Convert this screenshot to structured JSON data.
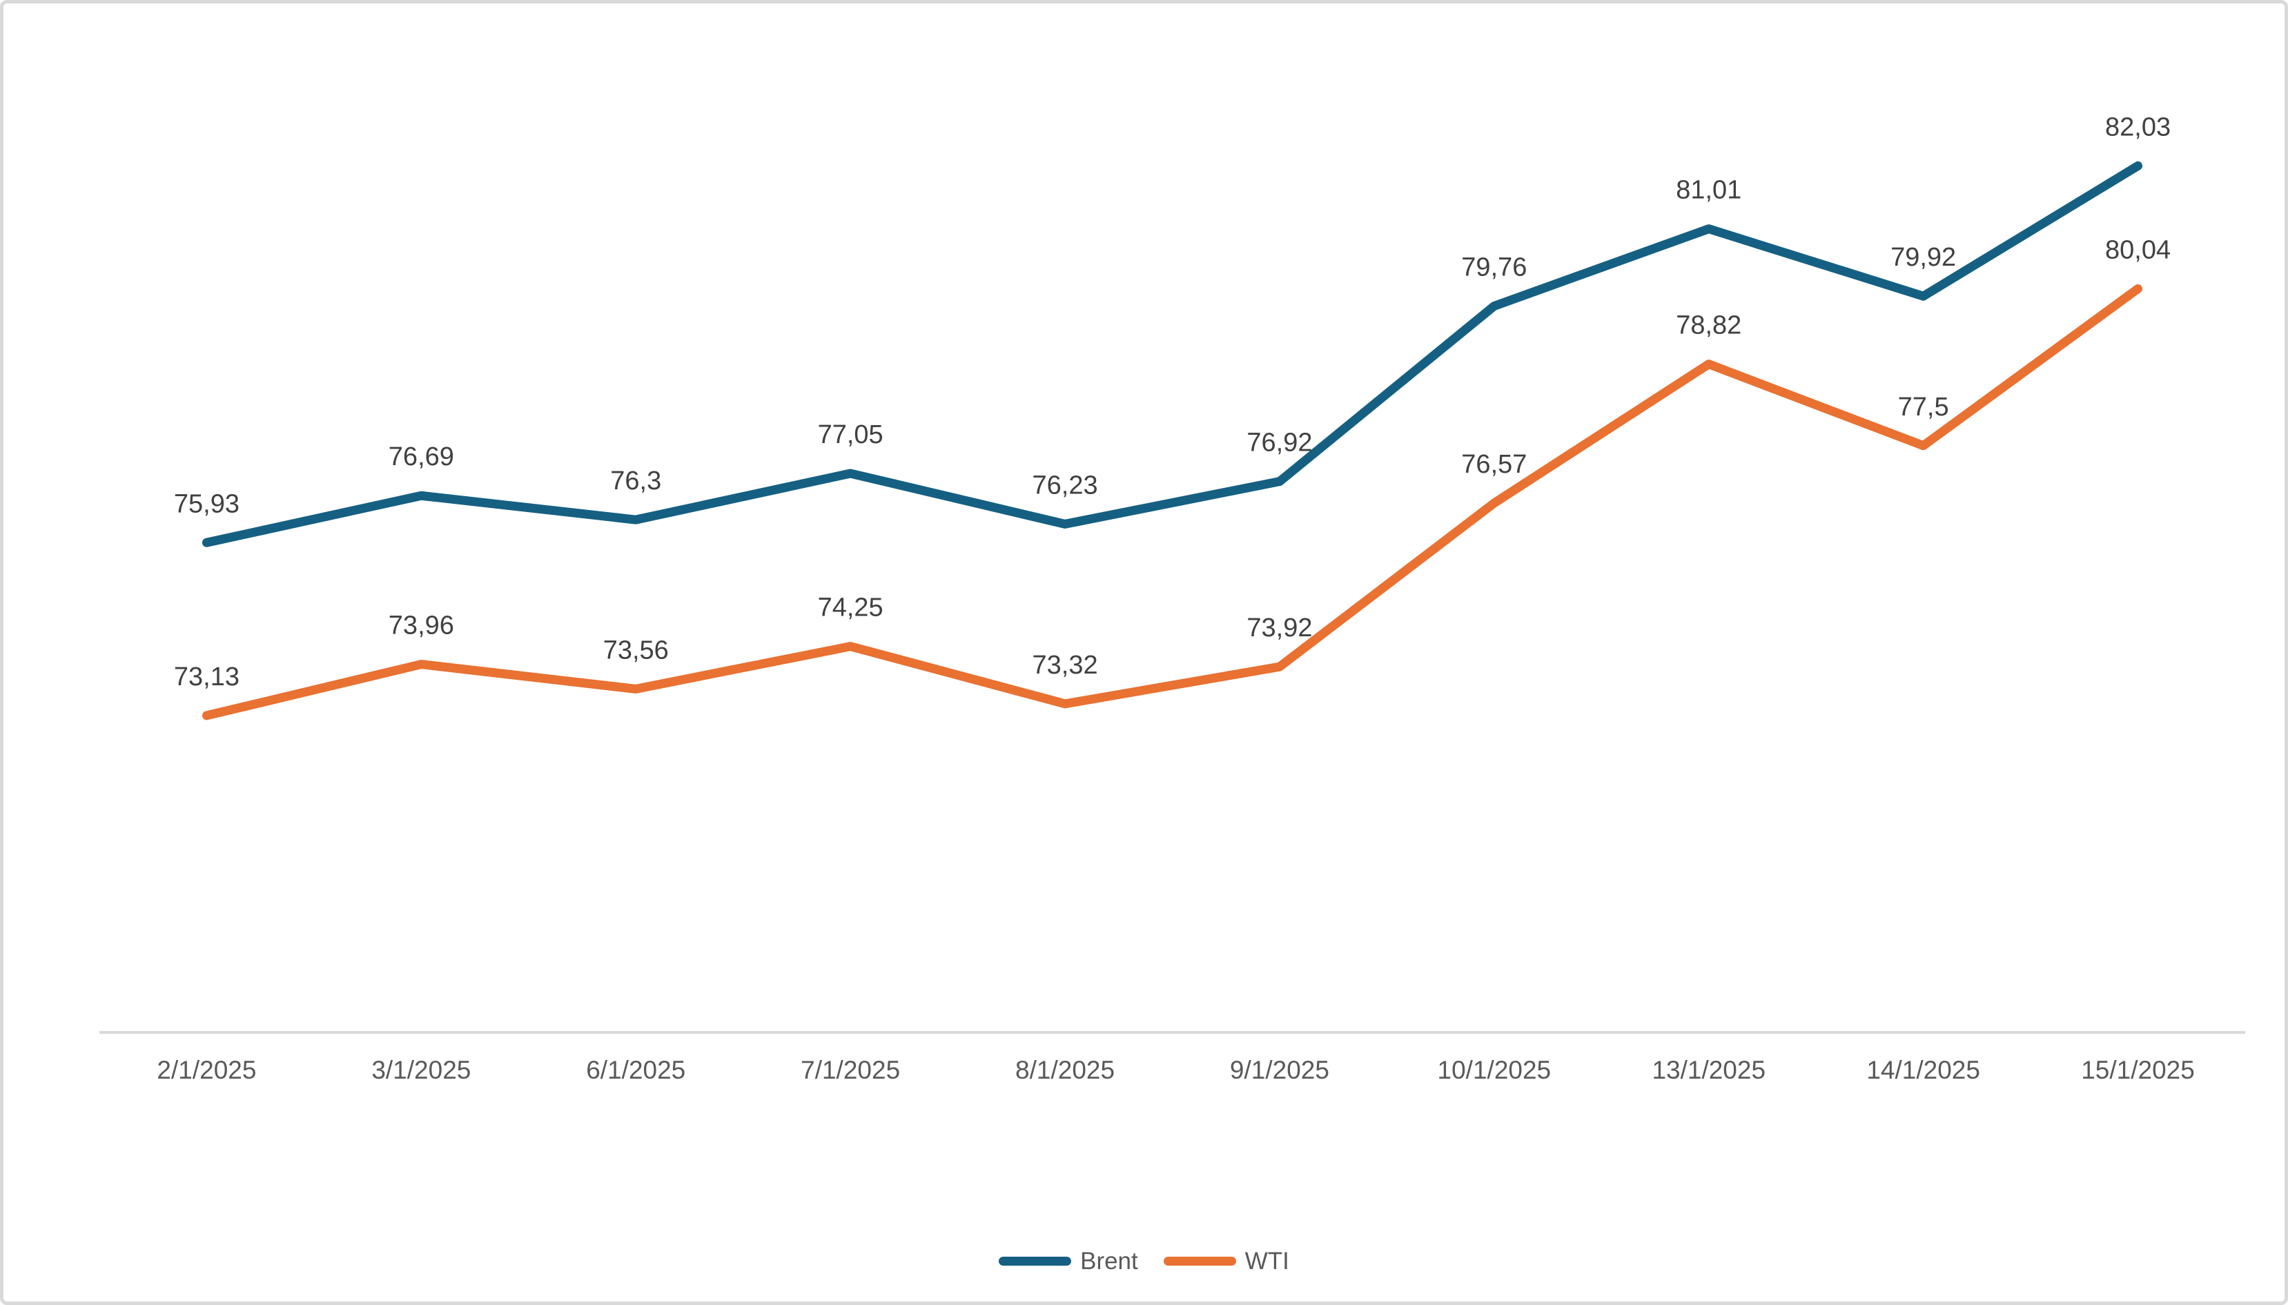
{
  "chart_data": {
    "type": "line",
    "title": "",
    "xlabel": "",
    "ylabel": "",
    "categories": [
      "2/1/2025",
      "3/1/2025",
      "6/1/2025",
      "7/1/2025",
      "8/1/2025",
      "9/1/2025",
      "10/1/2025",
      "13/1/2025",
      "14/1/2025",
      "15/1/2025"
    ],
    "series": [
      {
        "name": "Brent",
        "color": "#156082",
        "values": [
          75.93,
          76.69,
          76.3,
          77.05,
          76.23,
          76.92,
          79.76,
          81.01,
          79.92,
          82.03
        ],
        "labels": [
          "75,93",
          "76,69",
          "76,3",
          "77,05",
          "76,23",
          "76,92",
          "79,76",
          "81,01",
          "79,92",
          "82,03"
        ]
      },
      {
        "name": "WTI",
        "color": "#E97132",
        "values": [
          73.13,
          73.96,
          73.56,
          74.25,
          73.32,
          73.92,
          76.57,
          78.82,
          77.5,
          80.04
        ],
        "labels": [
          "73,13",
          "73,96",
          "73,56",
          "74,25",
          "73,32",
          "73,92",
          "76,57",
          "78,82",
          "77,5",
          "80,04"
        ]
      }
    ],
    "ylim": [
      68,
      84
    ],
    "grid": false,
    "y_axis_visible": false,
    "legend_position": "bottom",
    "axis_line_color": "#D9D9D9",
    "axis_label_color": "#595959",
    "data_label_color": "#404040"
  }
}
